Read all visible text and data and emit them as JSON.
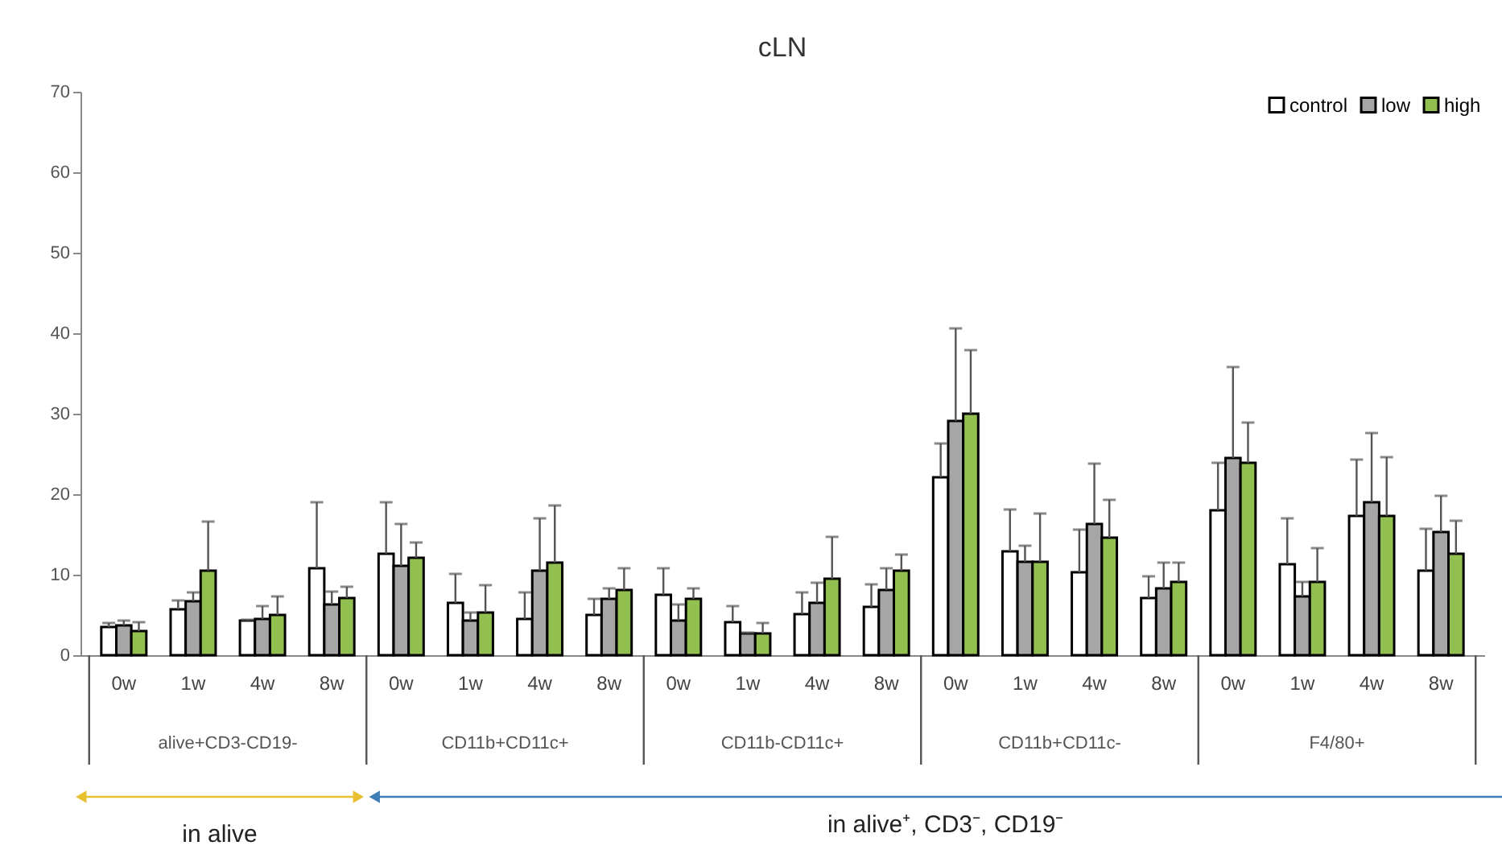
{
  "chart_data": {
    "type": "bar",
    "title": "cLN",
    "categories": [
      "0w",
      "1w",
      "4w",
      "8w",
      "0w",
      "1w",
      "4w",
      "8w",
      "0w",
      "1w",
      "4w",
      "8w",
      "0w",
      "1w",
      "4w",
      "8w",
      "0w",
      "1w",
      "4w",
      "8w"
    ],
    "series": [
      {
        "name": "control",
        "color": "#ffffff",
        "values": [
          3.5,
          5.7,
          4.3,
          10.8,
          12.6,
          6.5,
          4.5,
          5.0,
          7.5,
          4.1,
          5.1,
          6.0,
          22.1,
          12.9,
          10.3,
          7.1,
          18.0,
          11.3,
          17.3,
          10.5
        ],
        "errors": [
          [
            3.5,
            4.0
          ],
          [
            5.7,
            6.8
          ],
          [
            4.3,
            4.4
          ],
          [
            10.8,
            19.0
          ],
          [
            12.6,
            19.0
          ],
          [
            6.5,
            10.1
          ],
          [
            4.5,
            7.8
          ],
          [
            5.0,
            7.0
          ],
          [
            7.5,
            10.8
          ],
          [
            4.1,
            6.1
          ],
          [
            5.1,
            7.8
          ],
          [
            6.0,
            8.8
          ],
          [
            22.1,
            26.3
          ],
          [
            12.9,
            18.1
          ],
          [
            10.3,
            15.6
          ],
          [
            7.1,
            9.8
          ],
          [
            18.0,
            23.9
          ],
          [
            11.3,
            17.0
          ],
          [
            17.3,
            24.3
          ],
          [
            10.5,
            15.7
          ]
        ]
      },
      {
        "name": "low",
        "color": "#a6a6a6",
        "values": [
          3.7,
          6.7,
          4.5,
          6.3,
          11.1,
          4.3,
          10.5,
          7.0,
          4.3,
          2.7,
          6.5,
          8.1,
          29.1,
          11.6,
          16.3,
          8.3,
          24.5,
          7.3,
          19.0,
          15.3
        ],
        "errors": [
          [
            3.7,
            4.3
          ],
          [
            6.7,
            7.8
          ],
          [
            4.5,
            6.1
          ],
          [
            6.3,
            7.9
          ],
          [
            11.1,
            16.3
          ],
          [
            4.3,
            5.3
          ],
          [
            10.5,
            17.0
          ],
          [
            7.0,
            8.3
          ],
          [
            4.3,
            6.3
          ],
          [
            2.7,
            2.8
          ],
          [
            6.5,
            9.0
          ],
          [
            8.1,
            10.8
          ],
          [
            29.1,
            40.6
          ],
          [
            11.6,
            13.6
          ],
          [
            16.3,
            23.8
          ],
          [
            8.3,
            11.5
          ],
          [
            24.5,
            35.8
          ],
          [
            7.3,
            9.1
          ],
          [
            19.0,
            27.6
          ],
          [
            15.3,
            19.8
          ]
        ]
      },
      {
        "name": "high",
        "color": "#92c050",
        "values": [
          3.0,
          10.5,
          5.0,
          7.1,
          12.1,
          5.3,
          11.5,
          8.1,
          7.0,
          2.7,
          9.5,
          10.5,
          30.0,
          11.6,
          14.6,
          9.1,
          23.9,
          9.1,
          17.3,
          12.6
        ],
        "errors": [
          [
            3.0,
            4.1
          ],
          [
            10.5,
            16.6
          ],
          [
            5.0,
            7.3
          ],
          [
            7.1,
            8.5
          ],
          [
            12.1,
            14.0
          ],
          [
            5.3,
            8.7
          ],
          [
            11.5,
            18.6
          ],
          [
            8.1,
            10.8
          ],
          [
            7.0,
            8.3
          ],
          [
            2.7,
            4.0
          ],
          [
            9.5,
            14.7
          ],
          [
            10.5,
            12.5
          ],
          [
            30.0,
            37.9
          ],
          [
            11.6,
            17.6
          ],
          [
            14.6,
            19.3
          ],
          [
            9.1,
            11.5
          ],
          [
            23.9,
            28.9
          ],
          [
            9.1,
            13.3
          ],
          [
            17.3,
            24.6
          ],
          [
            12.6,
            16.7
          ]
        ]
      }
    ],
    "ylim": [
      0,
      70
    ],
    "yticks": [
      0,
      10,
      20,
      30,
      40,
      50,
      60,
      70
    ],
    "grid": false,
    "legend": "top right",
    "annotations": [
      "alive+CD3-CD19-",
      "CD11b+CD11c+",
      "CD11b-CD11c+",
      "CD11b+CD11c-",
      "F4/80+",
      "in alive",
      "in alive⁺, CD3⁻, CD19⁻"
    ]
  }
}
